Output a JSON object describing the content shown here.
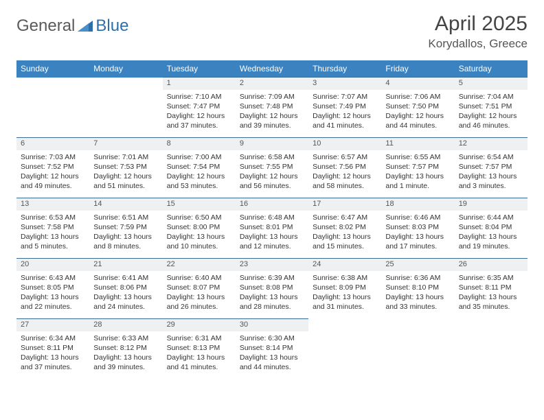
{
  "logo": {
    "part1": "General",
    "part2": "Blue"
  },
  "title": "April 2025",
  "location": "Korydallos, Greece",
  "colors": {
    "header_bg": "#3b83c0",
    "header_text": "#ffffff",
    "daynum_bg": "#eef0f1",
    "row_border": "#3b6a94",
    "text": "#333333",
    "logo_gray": "#5a5a5a",
    "logo_blue": "#2e6fab"
  },
  "day_headers": [
    "Sunday",
    "Monday",
    "Tuesday",
    "Wednesday",
    "Thursday",
    "Friday",
    "Saturday"
  ],
  "weeks": [
    [
      null,
      null,
      {
        "n": "1",
        "sr": "7:10 AM",
        "ss": "7:47 PM",
        "dl": "12 hours and 37 minutes."
      },
      {
        "n": "2",
        "sr": "7:09 AM",
        "ss": "7:48 PM",
        "dl": "12 hours and 39 minutes."
      },
      {
        "n": "3",
        "sr": "7:07 AM",
        "ss": "7:49 PM",
        "dl": "12 hours and 41 minutes."
      },
      {
        "n": "4",
        "sr": "7:06 AM",
        "ss": "7:50 PM",
        "dl": "12 hours and 44 minutes."
      },
      {
        "n": "5",
        "sr": "7:04 AM",
        "ss": "7:51 PM",
        "dl": "12 hours and 46 minutes."
      }
    ],
    [
      {
        "n": "6",
        "sr": "7:03 AM",
        "ss": "7:52 PM",
        "dl": "12 hours and 49 minutes."
      },
      {
        "n": "7",
        "sr": "7:01 AM",
        "ss": "7:53 PM",
        "dl": "12 hours and 51 minutes."
      },
      {
        "n": "8",
        "sr": "7:00 AM",
        "ss": "7:54 PM",
        "dl": "12 hours and 53 minutes."
      },
      {
        "n": "9",
        "sr": "6:58 AM",
        "ss": "7:55 PM",
        "dl": "12 hours and 56 minutes."
      },
      {
        "n": "10",
        "sr": "6:57 AM",
        "ss": "7:56 PM",
        "dl": "12 hours and 58 minutes."
      },
      {
        "n": "11",
        "sr": "6:55 AM",
        "ss": "7:57 PM",
        "dl": "13 hours and 1 minute."
      },
      {
        "n": "12",
        "sr": "6:54 AM",
        "ss": "7:57 PM",
        "dl": "13 hours and 3 minutes."
      }
    ],
    [
      {
        "n": "13",
        "sr": "6:53 AM",
        "ss": "7:58 PM",
        "dl": "13 hours and 5 minutes."
      },
      {
        "n": "14",
        "sr": "6:51 AM",
        "ss": "7:59 PM",
        "dl": "13 hours and 8 minutes."
      },
      {
        "n": "15",
        "sr": "6:50 AM",
        "ss": "8:00 PM",
        "dl": "13 hours and 10 minutes."
      },
      {
        "n": "16",
        "sr": "6:48 AM",
        "ss": "8:01 PM",
        "dl": "13 hours and 12 minutes."
      },
      {
        "n": "17",
        "sr": "6:47 AM",
        "ss": "8:02 PM",
        "dl": "13 hours and 15 minutes."
      },
      {
        "n": "18",
        "sr": "6:46 AM",
        "ss": "8:03 PM",
        "dl": "13 hours and 17 minutes."
      },
      {
        "n": "19",
        "sr": "6:44 AM",
        "ss": "8:04 PM",
        "dl": "13 hours and 19 minutes."
      }
    ],
    [
      {
        "n": "20",
        "sr": "6:43 AM",
        "ss": "8:05 PM",
        "dl": "13 hours and 22 minutes."
      },
      {
        "n": "21",
        "sr": "6:41 AM",
        "ss": "8:06 PM",
        "dl": "13 hours and 24 minutes."
      },
      {
        "n": "22",
        "sr": "6:40 AM",
        "ss": "8:07 PM",
        "dl": "13 hours and 26 minutes."
      },
      {
        "n": "23",
        "sr": "6:39 AM",
        "ss": "8:08 PM",
        "dl": "13 hours and 28 minutes."
      },
      {
        "n": "24",
        "sr": "6:38 AM",
        "ss": "8:09 PM",
        "dl": "13 hours and 31 minutes."
      },
      {
        "n": "25",
        "sr": "6:36 AM",
        "ss": "8:10 PM",
        "dl": "13 hours and 33 minutes."
      },
      {
        "n": "26",
        "sr": "6:35 AM",
        "ss": "8:11 PM",
        "dl": "13 hours and 35 minutes."
      }
    ],
    [
      {
        "n": "27",
        "sr": "6:34 AM",
        "ss": "8:11 PM",
        "dl": "13 hours and 37 minutes."
      },
      {
        "n": "28",
        "sr": "6:33 AM",
        "ss": "8:12 PM",
        "dl": "13 hours and 39 minutes."
      },
      {
        "n": "29",
        "sr": "6:31 AM",
        "ss": "8:13 PM",
        "dl": "13 hours and 41 minutes."
      },
      {
        "n": "30",
        "sr": "6:30 AM",
        "ss": "8:14 PM",
        "dl": "13 hours and 44 minutes."
      },
      null,
      null,
      null
    ]
  ],
  "labels": {
    "sunrise": "Sunrise:",
    "sunset": "Sunset:",
    "daylight": "Daylight:"
  }
}
